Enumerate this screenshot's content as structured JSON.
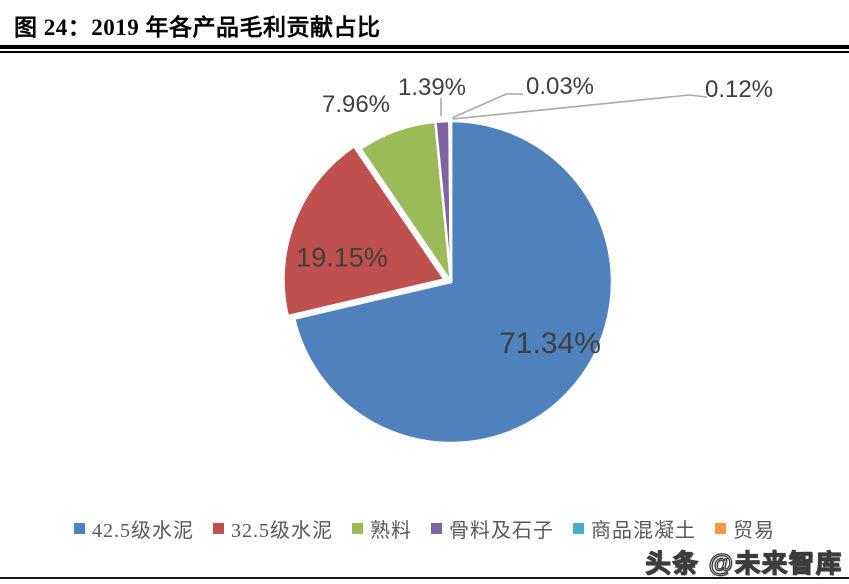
{
  "header": {
    "title": "图 24：2019 年各产品毛利贡献占比"
  },
  "chart_data": {
    "type": "pie",
    "title": "2019 年各产品毛利贡献占比",
    "legend_position": "bottom",
    "start_angle_deg": 0,
    "direction": "clockwise",
    "slices": [
      {
        "label": "42.5级水泥",
        "value": 71.34,
        "display": "71.34%",
        "color": "#4F81BD",
        "exploded": false
      },
      {
        "label": "32.5级水泥",
        "value": 19.15,
        "display": "19.15%",
        "color": "#C0504D",
        "exploded": true
      },
      {
        "label": "熟料",
        "value": 7.96,
        "display": "7.96%",
        "color": "#9BBB59",
        "exploded": false
      },
      {
        "label": "骨料及石子",
        "value": 1.39,
        "display": "1.39%",
        "color": "#8064A2",
        "exploded": false
      },
      {
        "label": "商品混凝土",
        "value": 0.03,
        "display": "0.03%",
        "color": "#4BACC6",
        "exploded": false
      },
      {
        "label": "贸易",
        "value": 0.12,
        "display": "0.12%",
        "color": "#F79646",
        "exploded": false
      }
    ]
  },
  "watermark": {
    "text": "头条 @未来智库"
  }
}
